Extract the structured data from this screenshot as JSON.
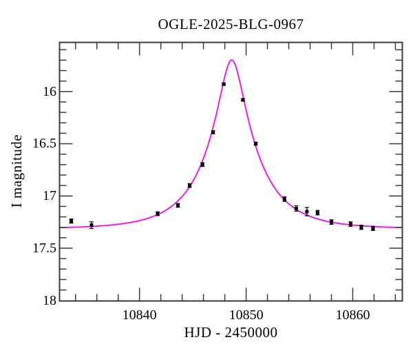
{
  "chart_data": {
    "type": "scatter",
    "title": "OGLE-2025-BLG-0967",
    "xlabel": "HJD - 2450000",
    "ylabel": "I magnitude",
    "xlim": [
      10832.5,
      10864.65
    ],
    "ylim": [
      15.53,
      18.005
    ],
    "y_axis_inverted_magnitude": true,
    "grid": false,
    "legend": "none",
    "x_ticks": {
      "minor_start": 10834,
      "minor_step": 2,
      "minor_end": 10864,
      "major": [
        10840,
        10850,
        10860
      ],
      "labels": [
        "10840",
        "10850",
        "10860"
      ]
    },
    "y_ticks": {
      "minor_start": 15.6,
      "minor_step": 0.1,
      "minor_end": 18.0,
      "major": [
        16,
        16.5,
        17,
        17.5,
        18
      ],
      "labels": [
        "16",
        "16.5",
        "17",
        "17.5",
        "18"
      ]
    },
    "points": [
      {
        "hjd": 10833.6,
        "mag": 17.24,
        "err": 0.02
      },
      {
        "hjd": 10835.5,
        "mag": 17.28,
        "err": 0.032
      },
      {
        "hjd": 10841.7,
        "mag": 17.17,
        "err": 0.018
      },
      {
        "hjd": 10843.6,
        "mag": 17.09,
        "err": 0.018
      },
      {
        "hjd": 10844.7,
        "mag": 16.9,
        "err": 0.018
      },
      {
        "hjd": 10845.9,
        "mag": 16.7,
        "err": 0.018
      },
      {
        "hjd": 10846.9,
        "mag": 16.39,
        "err": 0.015
      },
      {
        "hjd": 10847.9,
        "mag": 15.93,
        "err": 0.012
      },
      {
        "hjd": 10849.7,
        "mag": 16.08,
        "err": 0.012
      },
      {
        "hjd": 10850.9,
        "mag": 16.5,
        "err": 0.015
      },
      {
        "hjd": 10853.6,
        "mag": 17.03,
        "err": 0.022
      },
      {
        "hjd": 10854.7,
        "mag": 17.12,
        "err": 0.026
      },
      {
        "hjd": 10855.7,
        "mag": 17.15,
        "err": 0.04
      },
      {
        "hjd": 10856.7,
        "mag": 17.16,
        "err": 0.022
      },
      {
        "hjd": 10858.0,
        "mag": 17.25,
        "err": 0.022
      },
      {
        "hjd": 10859.8,
        "mag": 17.27,
        "err": 0.022
      },
      {
        "hjd": 10860.8,
        "mag": 17.3,
        "err": 0.02
      },
      {
        "hjd": 10861.9,
        "mag": 17.31,
        "err": 0.02
      }
    ],
    "model_curve": {
      "type": "paczynski-microlensing",
      "t0": 10848.65,
      "tE": 4.7,
      "u0": 0.23,
      "baseline_mag": 17.315
    },
    "colors": {
      "curve": "#ff00ff",
      "marker": "#000000",
      "axis": "#3a3a3a",
      "background": "#ffffff"
    }
  }
}
